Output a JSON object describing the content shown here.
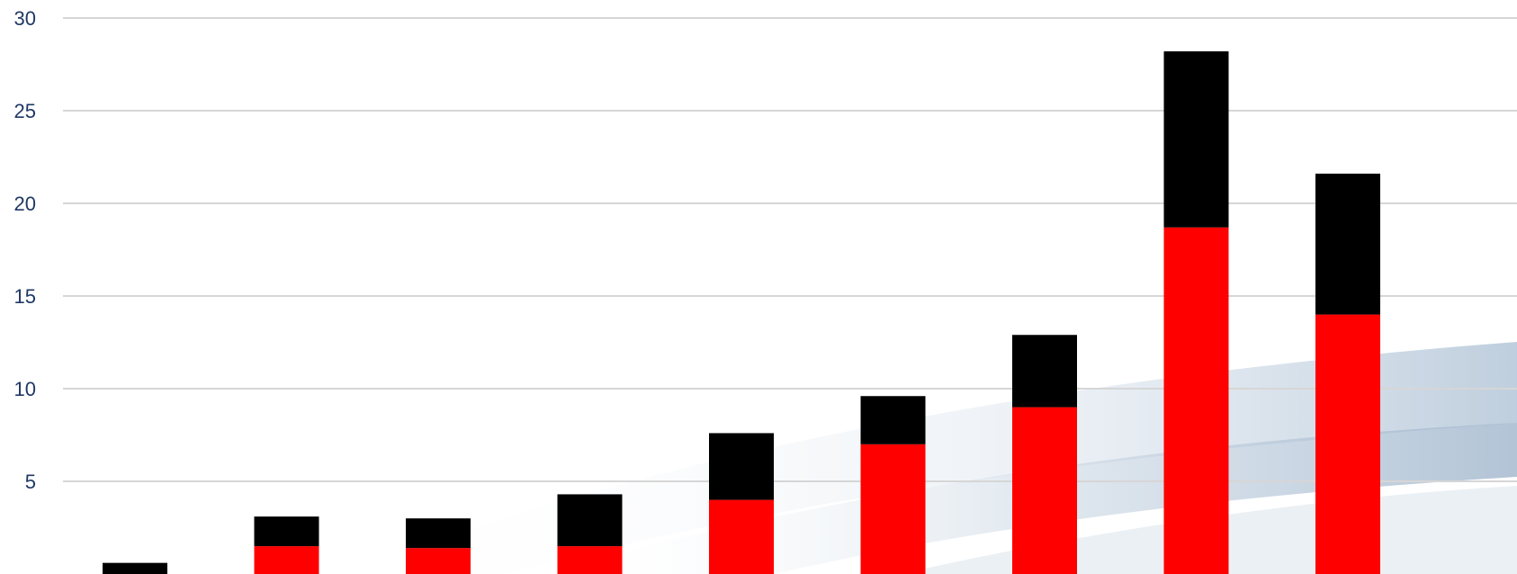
{
  "chart_data": {
    "type": "bar",
    "stacked": true,
    "title": "",
    "xlabel": "",
    "ylabel": "",
    "ylim": [
      0,
      30
    ],
    "yticks": [
      5,
      10,
      15,
      20,
      25,
      30
    ],
    "grid": true,
    "legend": "none",
    "categories": [
      "",
      "",
      "",
      "",
      "",
      "",
      "",
      "",
      ""
    ],
    "series": [
      {
        "color": "#ff0000",
        "values": [
          0,
          1.5,
          1.4,
          1.5,
          4.0,
          7.0,
          9.0,
          18.7,
          14.0
        ]
      },
      {
        "color": "#000000",
        "values": [
          0.6,
          1.6,
          1.6,
          2.8,
          3.6,
          2.6,
          3.9,
          9.5,
          7.6
        ]
      }
    ]
  }
}
